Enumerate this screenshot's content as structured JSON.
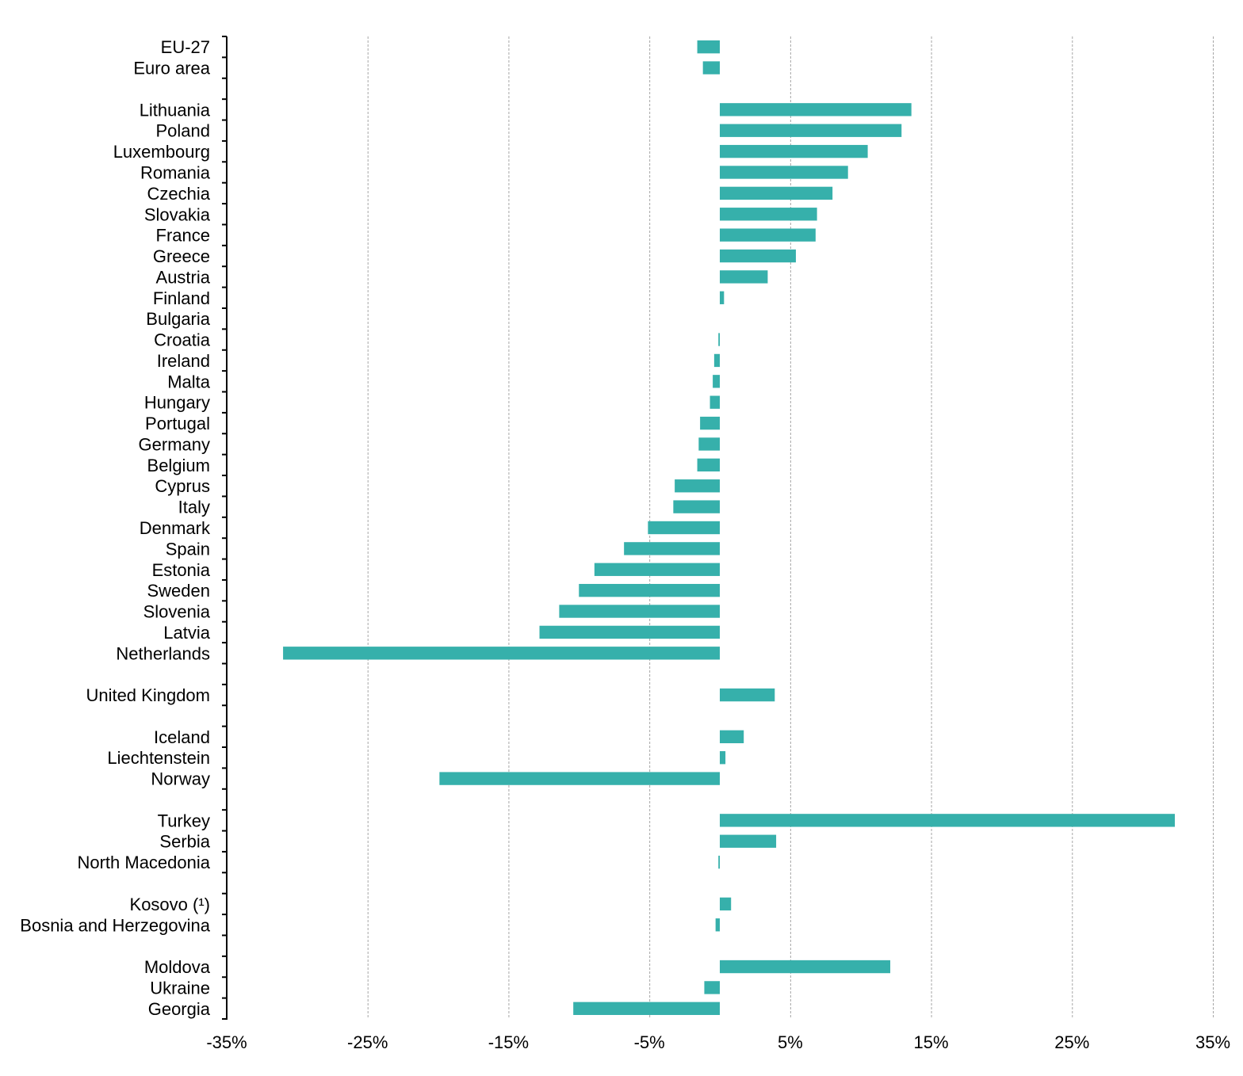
{
  "chart_data": {
    "type": "bar",
    "orientation": "horizontal",
    "title": "",
    "xlabel": "",
    "ylabel": "",
    "xlim": [
      -35,
      35
    ],
    "x_ticks": [
      -35,
      -25,
      -15,
      -5,
      5,
      15,
      25,
      35
    ],
    "x_tick_labels": [
      "-35%",
      "-25%",
      "-15%",
      "-5%",
      "5%",
      "15%",
      "25%",
      "35%"
    ],
    "grid": "vertical dashed",
    "legend": "none",
    "bar_color": "#36b0ab",
    "categories": [
      "EU-27",
      "Euro area",
      "",
      "Lithuania",
      "Poland",
      "Luxembourg",
      "Romania",
      "Czechia",
      "Slovakia",
      "France",
      "Greece",
      "Austria",
      "Finland",
      "Bulgaria",
      "Croatia",
      "Ireland",
      "Malta",
      "Hungary",
      "Portugal",
      "Germany",
      "Belgium",
      "Cyprus",
      "Italy",
      "Denmark",
      "Spain",
      "Estonia",
      "Sweden",
      "Slovenia",
      "Latvia",
      "Netherlands",
      "",
      "United Kingdom",
      "",
      "Iceland",
      "Liechtenstein",
      "Norway",
      "",
      "Turkey",
      "Serbia",
      "North Macedonia",
      "",
      "Kosovo (¹)",
      "Bosnia and Herzegovina",
      "",
      "Moldova",
      "Ukraine",
      "Georgia"
    ],
    "values": [
      -1.6,
      -1.2,
      null,
      13.6,
      12.9,
      10.5,
      9.1,
      8.0,
      6.9,
      6.8,
      5.4,
      3.4,
      0.3,
      0.0,
      -0.1,
      -0.4,
      -0.5,
      -0.7,
      -1.4,
      -1.5,
      -1.6,
      -3.2,
      -3.3,
      -5.1,
      -6.8,
      -8.9,
      -10.0,
      -11.4,
      -12.8,
      -31.0,
      null,
      3.9,
      null,
      1.7,
      0.4,
      -19.9,
      null,
      32.3,
      4.0,
      -0.1,
      null,
      0.8,
      -0.3,
      null,
      12.1,
      -1.1,
      -10.4
    ]
  }
}
